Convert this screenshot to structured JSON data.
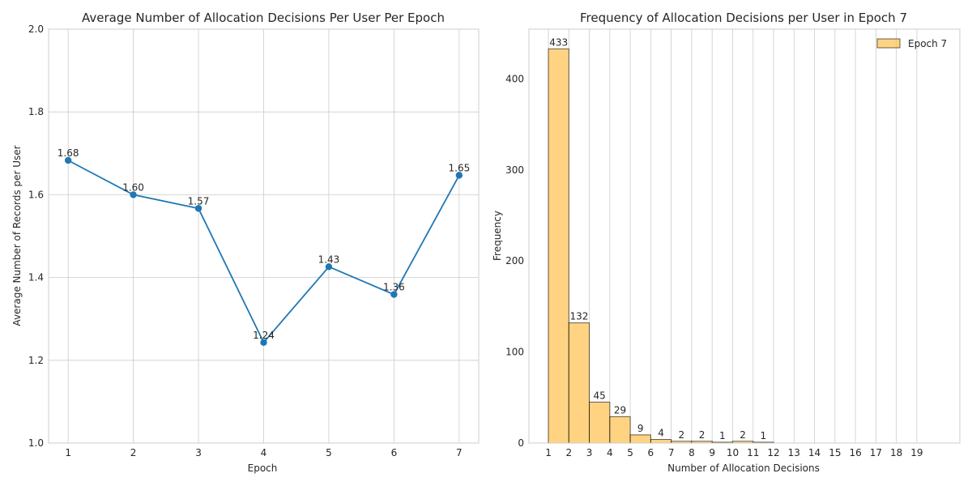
{
  "chart_data": [
    {
      "type": "line",
      "title": "Average Number of Allocation Decisions Per User Per Epoch",
      "xlabel": "Epoch",
      "ylabel": "Average Number of Records per User",
      "x": [
        1,
        2,
        3,
        4,
        5,
        6,
        7
      ],
      "xticks": [
        "1",
        "2",
        "3",
        "4",
        "5",
        "6",
        "7"
      ],
      "values": [
        1.683,
        1.6,
        1.567,
        1.243,
        1.426,
        1.359,
        1.647
      ],
      "point_labels": [
        "1.68",
        "1.60",
        "1.57",
        "1.24",
        "1.43",
        "1.36",
        "1.65"
      ],
      "xlim": [
        0.7,
        7.3
      ],
      "ylim": [
        1.0,
        2.0
      ],
      "yticks": [
        "1.0",
        "1.2",
        "1.4",
        "1.6",
        "1.8",
        "2.0"
      ],
      "grid": true,
      "color": "#1f77b4"
    },
    {
      "type": "bar",
      "title": "Frequency of Allocation Decisions per User in Epoch 7",
      "xlabel": "Number of Allocation Decisions",
      "ylabel": "Frequency",
      "bin_edges": [
        1,
        2,
        3,
        4,
        5,
        6,
        7,
        8,
        9,
        10,
        11,
        12
      ],
      "values": [
        433,
        132,
        45,
        29,
        9,
        4,
        2,
        2,
        1,
        2,
        1
      ],
      "bar_labels": [
        "433",
        "132",
        "45",
        "29",
        "9",
        "4",
        "2",
        "2",
        "1",
        "2",
        "1"
      ],
      "xticks": [
        "1",
        "2",
        "3",
        "4",
        "5",
        "6",
        "7",
        "8",
        "9",
        "10",
        "11",
        "12",
        "13",
        "14",
        "15",
        "16",
        "17",
        "18",
        "19"
      ],
      "xlim": [
        0.05,
        21.1
      ],
      "ylim": [
        0,
        454.6
      ],
      "yticks": [
        "0",
        "100",
        "200",
        "300",
        "400"
      ],
      "legend": {
        "label": "Epoch 7",
        "placement": "top-right"
      },
      "grid": true,
      "color": "#ffc04d",
      "edgecolor": "#000000"
    }
  ]
}
